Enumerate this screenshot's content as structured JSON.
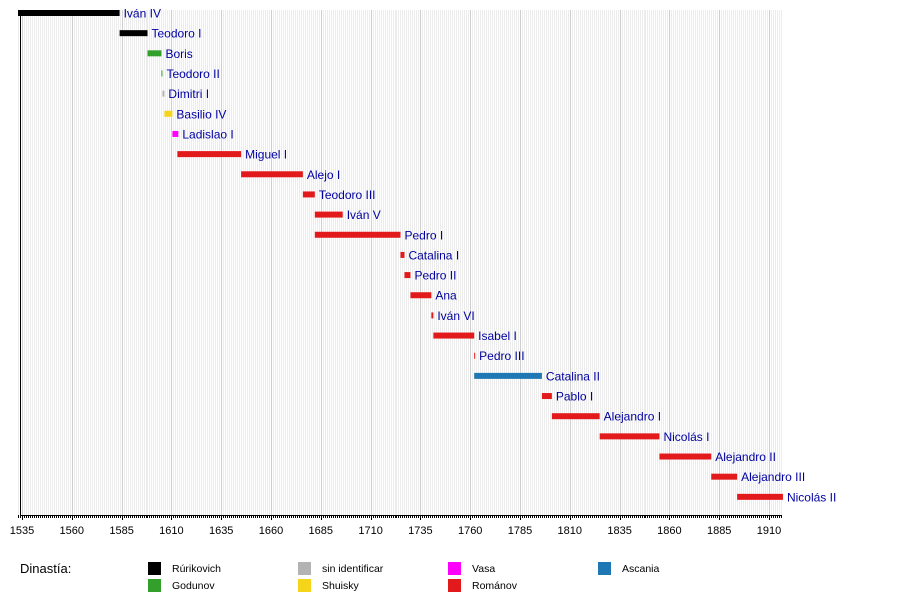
{
  "chart_data": {
    "type": "timeline",
    "title": "",
    "xlabel": "",
    "ylabel": "",
    "xlim": [
      1533,
      1917
    ],
    "xticks": [
      1535,
      1560,
      1585,
      1610,
      1635,
      1660,
      1685,
      1710,
      1735,
      1760,
      1785,
      1810,
      1835,
      1860,
      1885,
      1910
    ],
    "minor_tick_interval": 1,
    "grid": true,
    "legend": {
      "title": "Dinastía:",
      "placement": "bottom",
      "entries": [
        {
          "name": "Rúrikovich",
          "color": "#000000"
        },
        {
          "name": "Godunov",
          "color": "#33a02c"
        },
        {
          "name": "sin identificar",
          "color": "#b3b3b3"
        },
        {
          "name": "Shuisky",
          "color": "#f5d519"
        },
        {
          "name": "Vasa",
          "color": "#ff00ff"
        },
        {
          "name": "Románov",
          "color": "#e31a1c"
        },
        {
          "name": "Ascania",
          "color": "#1f78b4"
        }
      ]
    },
    "bars": [
      {
        "label": "Iván IV",
        "start": 1533,
        "end": 1584,
        "dynasty": "Rúrikovich"
      },
      {
        "label": "Teodoro I",
        "start": 1584,
        "end": 1598,
        "dynasty": "Rúrikovich"
      },
      {
        "label": "Boris",
        "start": 1598,
        "end": 1605,
        "dynasty": "Godunov"
      },
      {
        "label": "Teodoro II",
        "start": 1605,
        "end": 1605.5,
        "dynasty": "Godunov"
      },
      {
        "label": "Dimitri I",
        "start": 1605.5,
        "end": 1606.5,
        "dynasty": "sin identificar"
      },
      {
        "label": "Basilio IV",
        "start": 1606.5,
        "end": 1610.5,
        "dynasty": "Shuisky"
      },
      {
        "label": "Ladislao I",
        "start": 1610.5,
        "end": 1613.5,
        "dynasty": "Vasa"
      },
      {
        "label": "Miguel I",
        "start": 1613,
        "end": 1645,
        "dynasty": "Románov"
      },
      {
        "label": "Alejo I",
        "start": 1645,
        "end": 1676,
        "dynasty": "Románov"
      },
      {
        "label": "Teodoro III",
        "start": 1676,
        "end": 1682,
        "dynasty": "Románov"
      },
      {
        "label": "Iván V",
        "start": 1682,
        "end": 1696,
        "dynasty": "Románov"
      },
      {
        "label": "Pedro I",
        "start": 1682,
        "end": 1725,
        "dynasty": "Románov"
      },
      {
        "label": "Catalina I",
        "start": 1725,
        "end": 1727,
        "dynasty": "Románov"
      },
      {
        "label": "Pedro II",
        "start": 1727,
        "end": 1730,
        "dynasty": "Románov"
      },
      {
        "label": "Ana",
        "start": 1730,
        "end": 1740.5,
        "dynasty": "Románov"
      },
      {
        "label": "Iván VI",
        "start": 1740.5,
        "end": 1741.5,
        "dynasty": "Románov"
      },
      {
        "label": "Isabel I",
        "start": 1741.5,
        "end": 1762,
        "dynasty": "Románov"
      },
      {
        "label": "Pedro III",
        "start": 1762,
        "end": 1762.5,
        "dynasty": "Románov"
      },
      {
        "label": "Catalina II",
        "start": 1762,
        "end": 1796,
        "dynasty": "Ascania"
      },
      {
        "label": "Pablo I",
        "start": 1796,
        "end": 1801,
        "dynasty": "Románov"
      },
      {
        "label": "Alejandro I",
        "start": 1801,
        "end": 1825,
        "dynasty": "Románov"
      },
      {
        "label": "Nicolás I",
        "start": 1825,
        "end": 1855,
        "dynasty": "Románov"
      },
      {
        "label": "Alejandro II",
        "start": 1855,
        "end": 1881,
        "dynasty": "Románov"
      },
      {
        "label": "Alejandro III",
        "start": 1881,
        "end": 1894,
        "dynasty": "Románov"
      },
      {
        "label": "Nicolás II",
        "start": 1894,
        "end": 1917,
        "dynasty": "Románov"
      }
    ]
  }
}
